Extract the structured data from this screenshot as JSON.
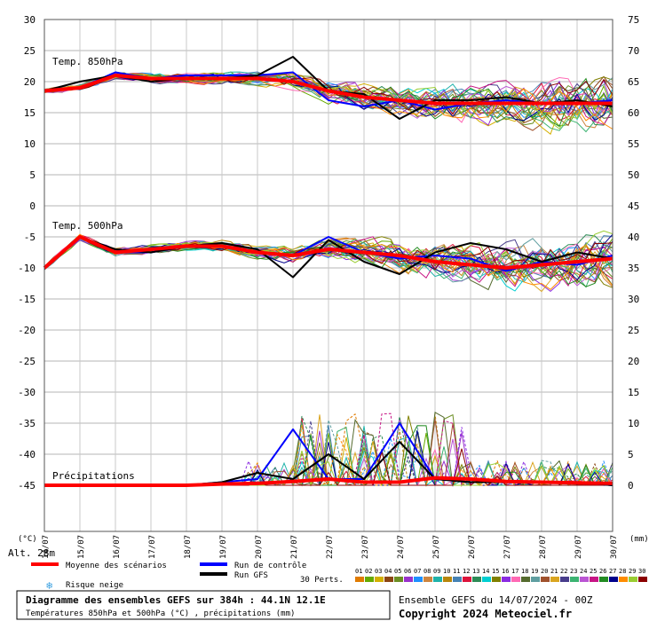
{
  "chart_data": {
    "type": "line",
    "title": "Diagramme des ensembles GEFS sur 384h : 44.1N 12.1E",
    "subtitle": "Températures 850hPa et 500hPa (°C) , précipitations (mm)",
    "run_info": "Ensemble GEFS du 14/07/2024 - 00Z",
    "copyright": "Copyright 2024 Meteociel.fr",
    "altitude": "Alt. 28m",
    "left_unit": "(°C)",
    "right_unit": "(mm)",
    "left_ticks": [
      "30",
      "25",
      "20",
      "15",
      "10",
      "5",
      "0",
      "-5",
      "-10",
      "-15",
      "-20",
      "-25",
      "-30",
      "-35",
      "-40",
      "-45"
    ],
    "right_ticks": [
      "75",
      "70",
      "65",
      "60",
      "55",
      "50",
      "45",
      "40",
      "35",
      "30",
      "25",
      "20",
      "15",
      "10",
      "5",
      "0"
    ],
    "dates": [
      "14/07",
      "15/07",
      "16/07",
      "17/07",
      "18/07",
      "19/07",
      "20/07",
      "21/07",
      "22/07",
      "23/07",
      "24/07",
      "25/07",
      "26/07",
      "27/07",
      "28/07",
      "29/07",
      "30/07"
    ],
    "ylim_left": [
      -45,
      30
    ],
    "ylim_right": [
      0,
      75
    ],
    "panel_labels": {
      "t850": "Temp. 850hPa",
      "t500": "Temp. 500hPa",
      "precip": "Précipitations"
    },
    "legend": {
      "mean": "Moyenne des scénarios",
      "control": "Run de contrôle",
      "gfs": "Run GFS",
      "snow": "Risque neige",
      "perts": "30 Perts.",
      "member_labels": [
        "01",
        "02",
        "03",
        "04",
        "05",
        "06",
        "07",
        "08",
        "09",
        "10",
        "11",
        "12",
        "13",
        "14",
        "15",
        "16",
        "17",
        "18",
        "19",
        "20",
        "21",
        "22",
        "23",
        "24",
        "25",
        "26",
        "27",
        "28",
        "29",
        "30"
      ]
    },
    "colors": {
      "mean": "#ff0000",
      "control": "#0000ff",
      "gfs": "#000000",
      "members": [
        "#e07b00",
        "#66aa00",
        "#d4b000",
        "#8b4513",
        "#6b8e23",
        "#9932cc",
        "#1e90ff",
        "#cd853f",
        "#20b2aa",
        "#b8860b",
        "#4682b4",
        "#dc143c",
        "#2e8b57",
        "#00ced1",
        "#808000",
        "#8a2be2",
        "#ff69b4",
        "#556b2f",
        "#5f9ea0",
        "#a0522d",
        "#daa520",
        "#483d8b",
        "#3cb371",
        "#ba55d3",
        "#c71585",
        "#228b22",
        "#00008b",
        "#ff8c00",
        "#9acd32",
        "#8b0000"
      ]
    },
    "series": [
      {
        "name": "Moyenne des scénarios",
        "t850": [
          18.5,
          19,
          21,
          20.5,
          20.5,
          20.5,
          20.5,
          20,
          18.5,
          17.5,
          17,
          16.5,
          16.5,
          16.5,
          16.5,
          16.5,
          16.5
        ],
        "t500": [
          -10,
          -5,
          -7.5,
          -7,
          -6.5,
          -6.5,
          -7.5,
          -8,
          -7,
          -7.5,
          -8,
          -9,
          -9.5,
          -10,
          -9.5,
          -9,
          -8.5
        ],
        "precip": [
          0,
          0,
          0,
          0,
          0,
          0.2,
          0.3,
          0.6,
          1,
          0.5,
          0.5,
          1.2,
          1,
          0.6,
          0.5,
          0.4,
          0.3
        ]
      },
      {
        "name": "Run de contrôle",
        "t850": [
          18.5,
          19,
          21.5,
          20.5,
          21,
          21,
          21,
          21.5,
          17,
          16,
          17,
          15.5,
          16.5,
          17,
          16.5,
          16.5,
          17
        ],
        "t500": [
          -10,
          -5,
          -7.5,
          -7.5,
          -6.5,
          -6.5,
          -7.5,
          -8,
          -5,
          -7.5,
          -8.5,
          -8,
          -8.5,
          -10.5,
          -9,
          -9.5,
          -8
        ],
        "precip": [
          0,
          0,
          0,
          0,
          0,
          0.5,
          1,
          9,
          1,
          1,
          10,
          1,
          0.5,
          0.5,
          0.5,
          0.5,
          0
        ]
      },
      {
        "name": "Run GFS",
        "t850": [
          18.5,
          20,
          21,
          20,
          20.5,
          20.5,
          21,
          24,
          18.5,
          18,
          14,
          17,
          17,
          17.5,
          16.5,
          17,
          16
        ],
        "t500": [
          -10,
          -5,
          -7,
          -7.5,
          -6.5,
          -6,
          -7,
          -11.5,
          -5.5,
          -9,
          -11,
          -7.5,
          -6,
          -7,
          -9,
          -7.5,
          -8.5
        ],
        "precip": [
          0,
          0,
          0,
          0,
          0,
          0.5,
          2,
          1,
          5,
          1,
          7,
          1,
          0.5,
          0.5,
          0.5,
          0.5,
          0
        ]
      }
    ]
  }
}
